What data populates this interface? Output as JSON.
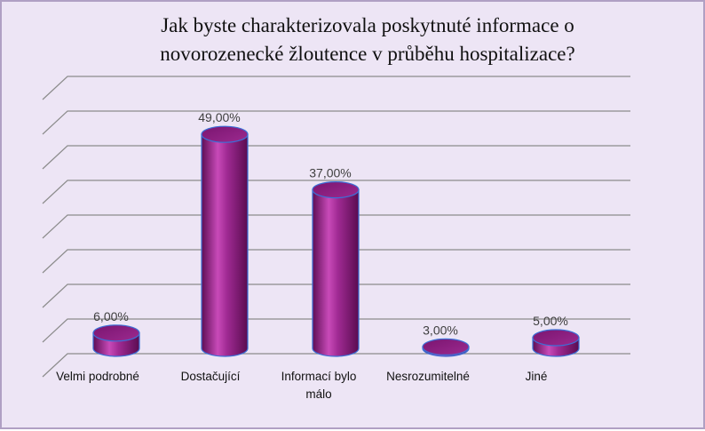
{
  "chart_data": {
    "type": "bar",
    "title_lines": [
      "Jak byste charakterizovala  poskytnuté informace o",
      "novorozenecké žloutence v průběhu hospitalizace?"
    ],
    "categories": [
      [
        "Velmi podrobné"
      ],
      [
        "Dostačující"
      ],
      [
        "Informací bylo",
        "málo"
      ],
      [
        "Nesrozumitelné"
      ],
      [
        "Jiné"
      ]
    ],
    "values": [
      6,
      49,
      37,
      3,
      5
    ],
    "data_labels": [
      "6,00%",
      "49,00%",
      "37,00%",
      "3,00%",
      "5,00%"
    ],
    "ylim": [
      0,
      60
    ],
    "grid": true,
    "legend": false,
    "bar_style": "3d-cylinder",
    "colors": {
      "bar": "#8b1a7e",
      "bar_highlight": "#c84ab8",
      "bar_edge": "#3d6fd6",
      "background": "#ede5f5",
      "border": "#b0a0c4"
    }
  }
}
